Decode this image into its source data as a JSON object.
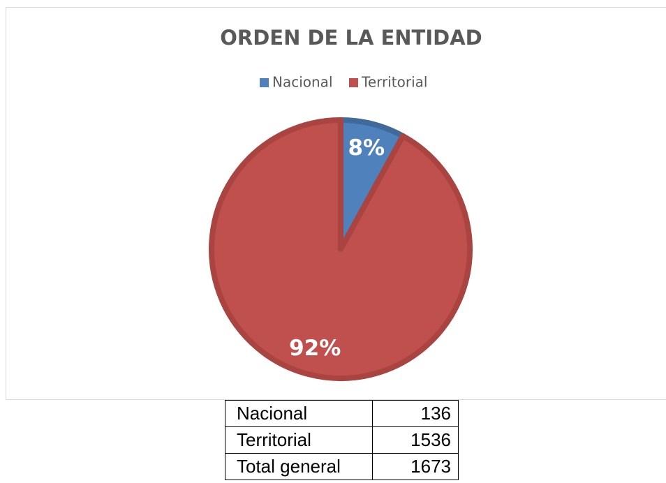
{
  "chart_data": {
    "type": "pie",
    "title": "ORDEN DE LA ENTIDAD",
    "categories": [
      "Nacional",
      "Territorial"
    ],
    "values": [
      8,
      92
    ],
    "value_labels": [
      "8%",
      "92%"
    ],
    "colors": [
      "#4f81bd",
      "#c0504d"
    ],
    "legend": "top"
  },
  "table": {
    "rows": [
      [
        "Nacional",
        "136"
      ],
      [
        "Territorial",
        "1536"
      ],
      [
        "Total general",
        "1673"
      ]
    ]
  }
}
